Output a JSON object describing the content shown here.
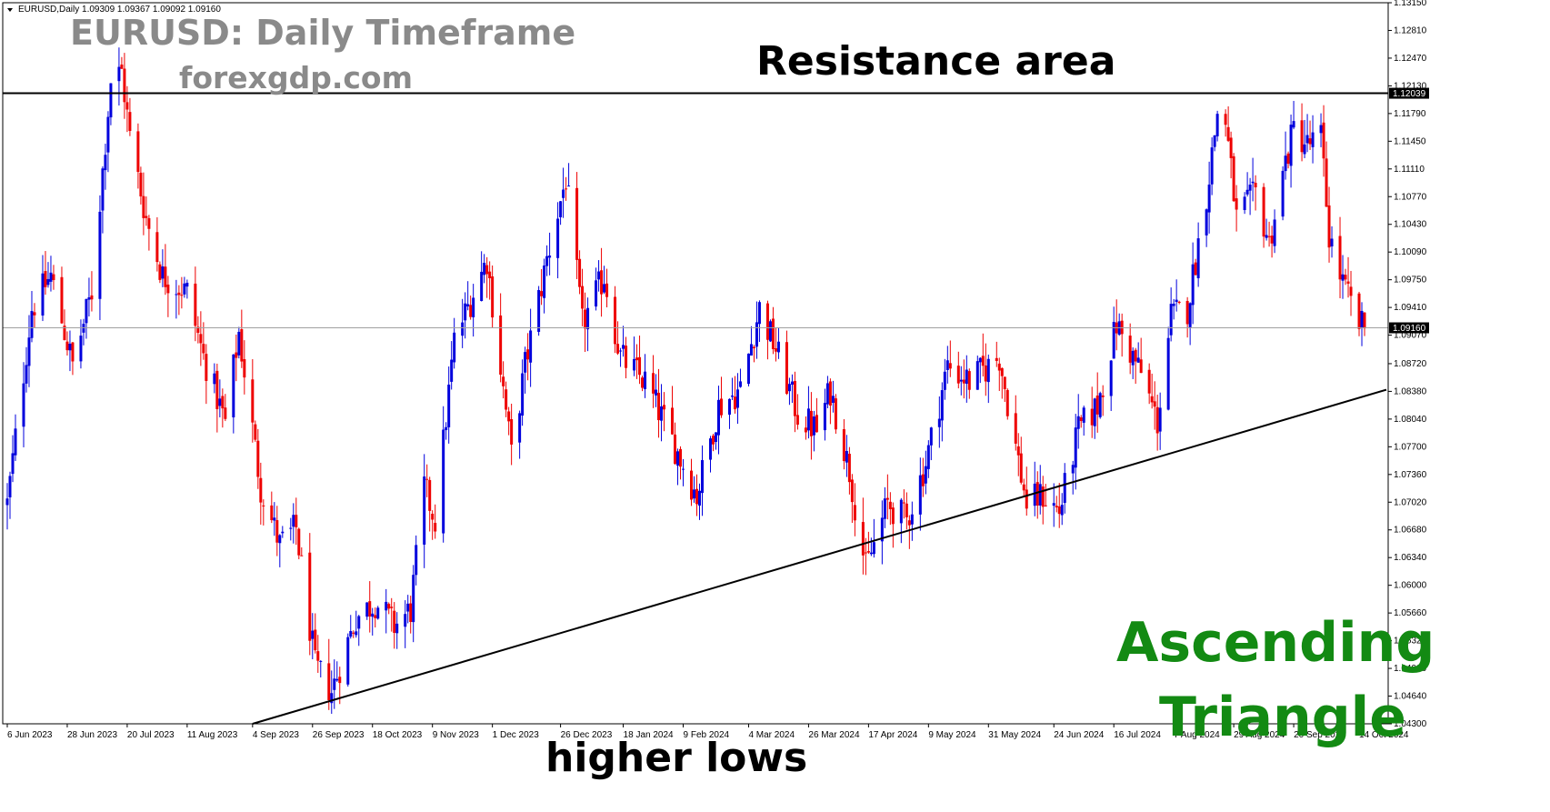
{
  "header": {
    "symbol_line": "EURUSD,Daily  1.09309 1.09367 1.09092 1.09160"
  },
  "annotations": {
    "title": "EURUSD: Daily Timeframe",
    "website": "forexgdp.com",
    "resistance_label": "Resistance area",
    "support_label": "higher lows",
    "pattern_line1": "Ascending",
    "pattern_line2": "Triangle"
  },
  "colors": {
    "bull_candle": "#0000dd",
    "bear_candle": "#ee0000",
    "pattern_text": "#138a13",
    "annotation_text": "#000000",
    "title_text": "#8a8a8a"
  },
  "chart_data": {
    "type": "candlestick",
    "symbol": "EURUSD",
    "timeframe": "Daily",
    "ohlc_header": {
      "open": 1.09309,
      "high": 1.09367,
      "low": 1.09092,
      "close": 1.0916
    },
    "current_price_label": "1.09160",
    "resistance_label": "1.12039",
    "y_range": [
      1.043,
      1.1315
    ],
    "x_range": [
      "2023-06-06",
      "2024-10-24"
    ],
    "y_ticks": [
      "1.13150",
      "1.12810",
      "1.12470",
      "1.12130",
      "1.11790",
      "1.11450",
      "1.11110",
      "1.10770",
      "1.10430",
      "1.10090",
      "1.09750",
      "1.09410",
      "1.09070",
      "1.08720",
      "1.08380",
      "1.08040",
      "1.07700",
      "1.07360",
      "1.07020",
      "1.06680",
      "1.06340",
      "1.06000",
      "1.05660",
      "1.05320",
      "1.04980",
      "1.04640",
      "1.04300"
    ],
    "x_ticks": [
      "6 Jun 2023",
      "28 Jun 2023",
      "20 Jul 2023",
      "11 Aug 2023",
      "4 Sep 2023",
      "26 Sep 2023",
      "18 Oct 2023",
      "9 Nov 2023",
      "1 Dec 2023",
      "26 Dec 2023",
      "18 Jan 2024",
      "9 Feb 2024",
      "4 Mar 2024",
      "26 Mar 2024",
      "17 Apr 2024",
      "9 May 2024",
      "31 May 2024",
      "24 Jun 2024",
      "16 Jul 2024",
      "7 Aug 2024",
      "29 Aug 2024",
      "20 Sep 2024",
      "14 Oct 2024"
    ],
    "x_tick_dates": [
      "2023-06-06",
      "2023-06-28",
      "2023-07-20",
      "2023-08-11",
      "2023-09-04",
      "2023-09-26",
      "2023-10-18",
      "2023-11-09",
      "2023-12-01",
      "2023-12-26",
      "2024-01-18",
      "2024-02-09",
      "2024-03-04",
      "2024-03-26",
      "2024-04-17",
      "2024-05-09",
      "2024-05-31",
      "2024-06-24",
      "2024-07-16",
      "2024-08-07",
      "2024-08-29",
      "2024-09-20",
      "2024-10-14"
    ],
    "path_keypoints": [
      {
        "date": "2023-06-06",
        "price": 1.07
      },
      {
        "date": "2023-06-15",
        "price": 1.094
      },
      {
        "date": "2023-06-22",
        "price": 1.098
      },
      {
        "date": "2023-06-30",
        "price": 1.087
      },
      {
        "date": "2023-07-07",
        "price": 1.096
      },
      {
        "date": "2023-07-14",
        "price": 1.122
      },
      {
        "date": "2023-07-18",
        "price": 1.123
      },
      {
        "date": "2023-07-21",
        "price": 1.115
      },
      {
        "date": "2023-07-27",
        "price": 1.105
      },
      {
        "date": "2023-08-02",
        "price": 1.098
      },
      {
        "date": "2023-08-11",
        "price": 1.096
      },
      {
        "date": "2023-08-17",
        "price": 1.088
      },
      {
        "date": "2023-08-25",
        "price": 1.08
      },
      {
        "date": "2023-08-30",
        "price": 1.091
      },
      {
        "date": "2023-09-07",
        "price": 1.072
      },
      {
        "date": "2023-09-14",
        "price": 1.065
      },
      {
        "date": "2023-09-20",
        "price": 1.067
      },
      {
        "date": "2023-09-27",
        "price": 1.05
      },
      {
        "date": "2023-10-03",
        "price": 1.047
      },
      {
        "date": "2023-10-12",
        "price": 1.056
      },
      {
        "date": "2023-10-19",
        "price": 1.058
      },
      {
        "date": "2023-10-26",
        "price": 1.055
      },
      {
        "date": "2023-11-01",
        "price": 1.057
      },
      {
        "date": "2023-11-06",
        "price": 1.072
      },
      {
        "date": "2023-11-10",
        "price": 1.068
      },
      {
        "date": "2023-11-17",
        "price": 1.09
      },
      {
        "date": "2023-11-29",
        "price": 1.1
      },
      {
        "date": "2023-12-08",
        "price": 1.076
      },
      {
        "date": "2023-12-13",
        "price": 1.087
      },
      {
        "date": "2023-12-21",
        "price": 1.1
      },
      {
        "date": "2023-12-28",
        "price": 1.11
      },
      {
        "date": "2024-01-03",
        "price": 1.092
      },
      {
        "date": "2024-01-11",
        "price": 1.098
      },
      {
        "date": "2024-01-17",
        "price": 1.088
      },
      {
        "date": "2024-01-26",
        "price": 1.085
      },
      {
        "date": "2024-02-02",
        "price": 1.08
      },
      {
        "date": "2024-02-14",
        "price": 1.071
      },
      {
        "date": "2024-02-22",
        "price": 1.082
      },
      {
        "date": "2024-03-01",
        "price": 1.084
      },
      {
        "date": "2024-03-08",
        "price": 1.094
      },
      {
        "date": "2024-03-14",
        "price": 1.089
      },
      {
        "date": "2024-03-22",
        "price": 1.081
      },
      {
        "date": "2024-03-29",
        "price": 1.079
      },
      {
        "date": "2024-04-03",
        "price": 1.084
      },
      {
        "date": "2024-04-10",
        "price": 1.074
      },
      {
        "date": "2024-04-16",
        "price": 1.062
      },
      {
        "date": "2024-04-24",
        "price": 1.07
      },
      {
        "date": "2024-05-01",
        "price": 1.068
      },
      {
        "date": "2024-05-08",
        "price": 1.075
      },
      {
        "date": "2024-05-16",
        "price": 1.087
      },
      {
        "date": "2024-05-24",
        "price": 1.085
      },
      {
        "date": "2024-06-04",
        "price": 1.088
      },
      {
        "date": "2024-06-10",
        "price": 1.077
      },
      {
        "date": "2024-06-14",
        "price": 1.07
      },
      {
        "date": "2024-06-20",
        "price": 1.071
      },
      {
        "date": "2024-06-26",
        "price": 1.069
      },
      {
        "date": "2024-07-03",
        "price": 1.079
      },
      {
        "date": "2024-07-10",
        "price": 1.082
      },
      {
        "date": "2024-07-17",
        "price": 1.092
      },
      {
        "date": "2024-07-26",
        "price": 1.086
      },
      {
        "date": "2024-08-01",
        "price": 1.08
      },
      {
        "date": "2024-08-06",
        "price": 1.093
      },
      {
        "date": "2024-08-12",
        "price": 1.094
      },
      {
        "date": "2024-08-19",
        "price": 1.108
      },
      {
        "date": "2024-08-23",
        "price": 1.118
      },
      {
        "date": "2024-08-26",
        "price": 1.117
      },
      {
        "date": "2024-08-30",
        "price": 1.105
      },
      {
        "date": "2024-09-06",
        "price": 1.108
      },
      {
        "date": "2024-09-11",
        "price": 1.102
      },
      {
        "date": "2024-09-17",
        "price": 1.112
      },
      {
        "date": "2024-09-20",
        "price": 1.116
      },
      {
        "date": "2024-09-25",
        "price": 1.114
      },
      {
        "date": "2024-09-30",
        "price": 1.115
      },
      {
        "date": "2024-10-03",
        "price": 1.103
      },
      {
        "date": "2024-10-08",
        "price": 1.097
      },
      {
        "date": "2024-10-14",
        "price": 1.092
      },
      {
        "date": "2024-10-16",
        "price": 1.0916
      }
    ],
    "lines": [
      {
        "kind": "horizontal",
        "label": "Resistance area",
        "price": 1.12039
      },
      {
        "kind": "trendline",
        "label": "higher lows",
        "from": {
          "date": "2023-09-04",
          "price": 1.043
        },
        "to": {
          "date": "2024-10-24",
          "price": 1.084
        }
      }
    ],
    "pattern": "Ascending Triangle"
  }
}
